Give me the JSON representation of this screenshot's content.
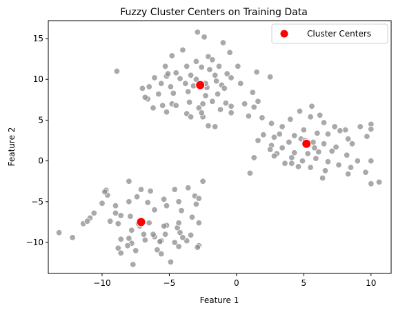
{
  "chart_data": {
    "type": "scatter",
    "title": "Fuzzy Cluster Centers on Training Data",
    "xlabel": "Feature 1",
    "ylabel": "Feature 2",
    "xlim": [
      -14,
      11.5
    ],
    "ylim": [
      -13.8,
      17.2
    ],
    "xticks": [
      -10,
      -5,
      0,
      5,
      10
    ],
    "yticks": [
      -10,
      -5,
      0,
      5,
      10,
      15
    ],
    "grid": false,
    "legend_position": "top-right",
    "series": [
      {
        "role": "training-data",
        "color": "#8c8c8c",
        "points": [
          [
            -2.9,
            15.8
          ],
          [
            -2.4,
            15.2
          ],
          [
            -1,
            14.5
          ],
          [
            -0.5,
            13.3
          ],
          [
            -4,
            13.6
          ],
          [
            -2.1,
            12.8
          ],
          [
            -4.8,
            12.9
          ],
          [
            -1.8,
            12.4
          ],
          [
            -3,
            12.2
          ],
          [
            -5.3,
            11.6
          ],
          [
            -3.7,
            11.6
          ],
          [
            -1.3,
            11.6
          ],
          [
            -2,
            11.2
          ],
          [
            -2.6,
            11.5
          ],
          [
            0.1,
            11.6
          ],
          [
            -8.9,
            11.0
          ],
          [
            -4.5,
            10.8
          ],
          [
            -3.4,
            10.5
          ],
          [
            -1.6,
            10.5
          ],
          [
            -0.7,
            10.7
          ],
          [
            1.5,
            10.9
          ],
          [
            -6.1,
            10.2
          ],
          [
            -5.2,
            10.4
          ],
          [
            -4.2,
            10.1
          ],
          [
            -3,
            10.0
          ],
          [
            -1.5,
            9.8
          ],
          [
            -0.4,
            10.2
          ],
          [
            2.5,
            10.3
          ],
          [
            -7.0,
            8.9
          ],
          [
            -6.5,
            9.1
          ],
          [
            -5.6,
            9.5
          ],
          [
            -4.9,
            9.1
          ],
          [
            -3.8,
            9.5
          ],
          [
            -2.2,
            9.0
          ],
          [
            -1.1,
            9.3
          ],
          [
            0.3,
            9.5
          ],
          [
            -6.6,
            7.6
          ],
          [
            -5.8,
            8.2
          ],
          [
            -4.7,
            8.3
          ],
          [
            -3.6,
            8.5
          ],
          [
            -2.3,
            8.0
          ],
          [
            -1.4,
            8.2
          ],
          [
            1.2,
            8.4
          ],
          [
            -4.8,
            7.0
          ],
          [
            -3.5,
            7.2
          ],
          [
            -2.5,
            7.0
          ],
          [
            -1.8,
            7.3
          ],
          [
            -0.8,
            7.1
          ],
          [
            0.6,
            7.0
          ],
          [
            1.6,
            7.3
          ],
          [
            -6.2,
            6.5
          ],
          [
            -5.5,
            6.8
          ],
          [
            -2.8,
            6.5
          ],
          [
            -1.2,
            6.3
          ],
          [
            -0.4,
            6.7
          ],
          [
            1.3,
            6.6
          ],
          [
            -5.2,
            6.0
          ],
          [
            -3.7,
            5.8
          ],
          [
            -2.5,
            5.4
          ],
          [
            -0.4,
            5.9
          ],
          [
            0.9,
            5.5
          ],
          [
            1.9,
            5.3
          ],
          [
            -3.4,
            5.4
          ],
          [
            -2.1,
            4.3
          ],
          [
            -1.6,
            4.2
          ],
          [
            -2.6,
            5.9
          ],
          [
            -4.5,
            6.8
          ],
          [
            -6.8,
            7.8
          ],
          [
            -3.2,
            9.2
          ],
          [
            -2.3,
            9.5
          ],
          [
            -0.9,
            8.9
          ],
          [
            -5.1,
            10.7
          ],
          [
            2.6,
            4.6
          ],
          [
            3.4,
            4.2
          ],
          [
            4.0,
            5.1
          ],
          [
            4.7,
            6.1
          ],
          [
            5.5,
            5.4
          ],
          [
            6.2,
            5.6
          ],
          [
            5.6,
            6.7
          ],
          [
            6.5,
            4.7
          ],
          [
            7.3,
            4.2
          ],
          [
            8.1,
            3.8
          ],
          [
            9.2,
            4.2
          ],
          [
            10.0,
            4.5
          ],
          [
            3.2,
            3.3
          ],
          [
            4.3,
            3.1
          ],
          [
            5.0,
            3.8
          ],
          [
            6.0,
            3.4
          ],
          [
            6.8,
            3.3
          ],
          [
            7.7,
            3.7
          ],
          [
            8.3,
            2.7
          ],
          [
            9.7,
            3.0
          ],
          [
            2.0,
            3.2
          ],
          [
            2.8,
            2.9
          ],
          [
            3.9,
            2.3
          ],
          [
            4.8,
            2.7
          ],
          [
            5.7,
            2.3
          ],
          [
            6.5,
            2.1
          ],
          [
            7.4,
            1.7
          ],
          [
            8.6,
            2.1
          ],
          [
            10.0,
            3.9
          ],
          [
            1.6,
            2.5
          ],
          [
            2.6,
            1.9
          ],
          [
            3.4,
            1.6
          ],
          [
            4.3,
            1.0
          ],
          [
            5.3,
            0.9
          ],
          [
            6.1,
            1.1
          ],
          [
            7.1,
            1.2
          ],
          [
            8.2,
            0.7
          ],
          [
            9.0,
            0.0
          ],
          [
            2.5,
            1.4
          ],
          [
            3.0,
            0.9
          ],
          [
            4.1,
            0.4
          ],
          [
            4.9,
            0.0
          ],
          [
            5.9,
            0.3
          ],
          [
            6.8,
            -0.1
          ],
          [
            7.6,
            -0.5
          ],
          [
            8.5,
            -0.8
          ],
          [
            10.0,
            0.0
          ],
          [
            1.3,
            0.4
          ],
          [
            3.6,
            -0.3
          ],
          [
            4.6,
            -0.7
          ],
          [
            5.5,
            -0.8
          ],
          [
            6.6,
            -1.2
          ],
          [
            8.3,
            -1.6
          ],
          [
            9.6,
            -1.4
          ],
          [
            1.0,
            -1.5
          ],
          [
            6.4,
            -2.1
          ],
          [
            10.0,
            -2.8
          ],
          [
            10.6,
            -2.6
          ],
          [
            2.8,
            0.6
          ],
          [
            4.1,
            -0.3
          ],
          [
            5.1,
            2.5
          ],
          [
            5.8,
            1.6
          ],
          [
            -9.7,
            -3.6
          ],
          [
            -9.6,
            -4.2
          ],
          [
            -8.0,
            -2.5
          ],
          [
            -7.1,
            -3.5
          ],
          [
            -6.4,
            -3.7
          ],
          [
            -4.6,
            -3.5
          ],
          [
            -3.6,
            -3.3
          ],
          [
            -2.5,
            -2.5
          ],
          [
            -10.0,
            -5.2
          ],
          [
            -9.0,
            -5.5
          ],
          [
            -8.0,
            -5.0
          ],
          [
            -7.4,
            -4.4
          ],
          [
            -6.6,
            -5.1
          ],
          [
            -5.4,
            -4.7
          ],
          [
            -4.3,
            -5.0
          ],
          [
            -3.1,
            -4.3
          ],
          [
            -2.8,
            -4.6
          ],
          [
            -10.6,
            -6.4
          ],
          [
            -9.0,
            -6.4
          ],
          [
            -8.6,
            -6.7
          ],
          [
            -7.9,
            -6.8
          ],
          [
            -6.1,
            -6.0
          ],
          [
            -5.2,
            -5.5
          ],
          [
            -4.1,
            -6.1
          ],
          [
            -3.3,
            -6.9
          ],
          [
            -10.9,
            -7.0
          ],
          [
            -11.4,
            -7.7
          ],
          [
            -9.4,
            -7.4
          ],
          [
            -8.8,
            -7.7
          ],
          [
            -7.2,
            -8.0
          ],
          [
            -6.5,
            -7.6
          ],
          [
            -5.2,
            -7.9
          ],
          [
            -4.4,
            -8.2
          ],
          [
            -2.8,
            -7.6
          ],
          [
            -12.2,
            -9.4
          ],
          [
            -8.0,
            -9.5
          ],
          [
            -6.9,
            -9.0
          ],
          [
            -6.1,
            -9.3
          ],
          [
            -5.3,
            -9.0
          ],
          [
            -4.2,
            -8.8
          ],
          [
            -3.4,
            -9.1
          ],
          [
            -8.6,
            -9.6
          ],
          [
            -7.8,
            -10.1
          ],
          [
            -6.8,
            -9.7
          ],
          [
            -5.6,
            -9.8
          ],
          [
            -4.6,
            -10.0
          ],
          [
            -3.7,
            -9.8
          ],
          [
            -8.8,
            -10.7
          ],
          [
            -7.5,
            -11.0
          ],
          [
            -5.9,
            -10.9
          ],
          [
            -4.3,
            -10.5
          ],
          [
            -2.8,
            -10.4
          ],
          [
            -8.6,
            -11.3
          ],
          [
            -5.6,
            -11.4
          ],
          [
            -4.9,
            -12.4
          ],
          [
            -7.7,
            -12.7
          ],
          [
            -13.2,
            -8.8
          ],
          [
            -7.8,
            -8.5
          ],
          [
            -3.0,
            -5.3
          ],
          [
            -4.3,
            -7.6
          ],
          [
            -5.7,
            -9.9
          ],
          [
            -8.1,
            -10.4
          ],
          [
            -5.4,
            -8.0
          ],
          [
            -6.2,
            -9.0
          ],
          [
            -4.0,
            -9.4
          ],
          [
            -7.3,
            -7.7
          ],
          [
            -9.8,
            -3.8
          ],
          [
            -11.1,
            -7.4
          ],
          [
            -2.9,
            -10.6
          ]
        ]
      },
      {
        "name": "Cluster Centers",
        "role": "cluster-centers",
        "color": "#ff0000",
        "points": [
          [
            -2.7,
            9.3
          ],
          [
            5.2,
            2.1
          ],
          [
            -7.1,
            -7.5
          ]
        ]
      }
    ]
  }
}
